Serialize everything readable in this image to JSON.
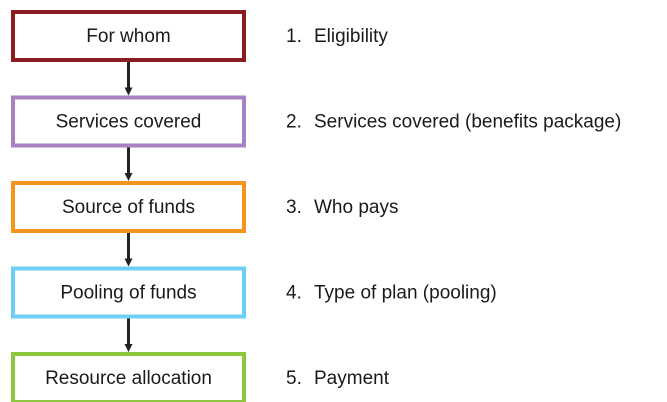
{
  "nodes": [
    {
      "label": "For whom",
      "color": "#8b1c24",
      "number": "1.",
      "description": "Eligibility"
    },
    {
      "label": "Services covered",
      "color": "#a682c2",
      "number": "2.",
      "description": "Services covered (benefits package)"
    },
    {
      "label": "Source of funds",
      "color": "#f7941d",
      "number": "3.",
      "description": "Who pays"
    },
    {
      "label": "Pooling of funds",
      "color": "#6dcff6",
      "number": "4.",
      "description": "Type of plan (pooling)"
    },
    {
      "label": "Resource allocation",
      "color": "#8dc63f",
      "number": "5.",
      "description": "Payment"
    }
  ]
}
